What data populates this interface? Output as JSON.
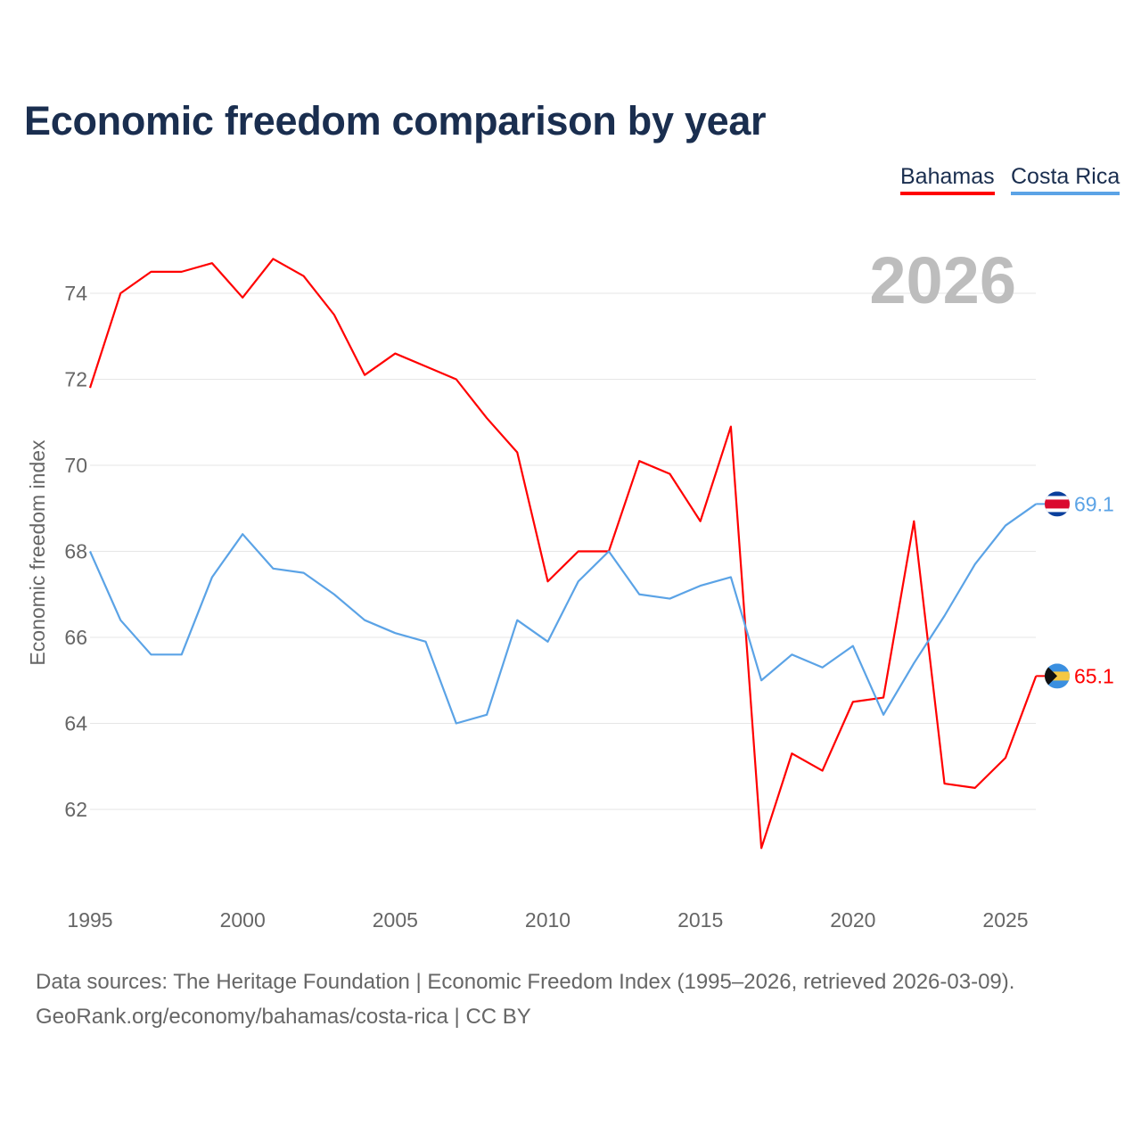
{
  "chart_data": {
    "type": "line",
    "title": "Economic freedom comparison by year",
    "ylabel": "Economic freedom index",
    "xlabel": "",
    "watermark_year": "2026",
    "xlim": [
      1995,
      2026
    ],
    "ylim": [
      60.2,
      75.4
    ],
    "yticks": [
      62,
      64,
      66,
      68,
      70,
      72,
      74
    ],
    "xticks": [
      1995,
      2000,
      2005,
      2010,
      2015,
      2020,
      2025
    ],
    "grid": true,
    "legend_position": "top-right",
    "x": [
      1995,
      1996,
      1997,
      1998,
      1999,
      2000,
      2001,
      2002,
      2003,
      2004,
      2005,
      2006,
      2007,
      2008,
      2009,
      2010,
      2011,
      2012,
      2013,
      2014,
      2015,
      2016,
      2017,
      2018,
      2019,
      2020,
      2021,
      2022,
      2023,
      2024,
      2025,
      2026
    ],
    "series": [
      {
        "name": "Bahamas",
        "color": "#ff0000",
        "end_label": "65.1",
        "flag": "bahamas-flag",
        "values": [
          71.8,
          74.0,
          74.5,
          74.5,
          74.7,
          73.9,
          74.8,
          74.4,
          73.5,
          72.1,
          72.6,
          72.3,
          72.0,
          71.1,
          70.3,
          67.3,
          68.0,
          68.0,
          70.1,
          69.8,
          68.7,
          70.9,
          61.1,
          63.3,
          62.9,
          64.5,
          64.6,
          68.7,
          62.6,
          62.5,
          63.2,
          65.1
        ]
      },
      {
        "name": "Costa Rica",
        "color": "#5ba3e6",
        "end_label": "69.1",
        "flag": "costa-rica-flag",
        "values": [
          68.0,
          66.4,
          65.6,
          65.6,
          67.4,
          68.4,
          67.6,
          67.5,
          67.0,
          66.4,
          66.1,
          65.9,
          64.0,
          64.2,
          66.4,
          65.9,
          67.3,
          68.0,
          67.0,
          66.9,
          67.2,
          67.4,
          65.0,
          65.6,
          65.3,
          65.8,
          64.2,
          65.4,
          66.5,
          67.7,
          68.6,
          69.1
        ]
      }
    ]
  },
  "footer": {
    "line1": "Data sources: The Heritage Foundation | Economic Freedom Index (1995–2026, retrieved 2026-03-09).",
    "line2": "GeoRank.org/economy/bahamas/costa-rica | CC BY"
  }
}
